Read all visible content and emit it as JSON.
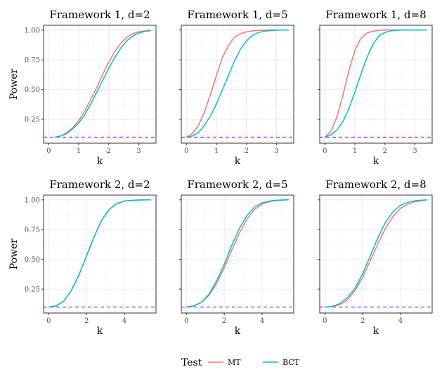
{
  "chart_data": {
    "type": "line",
    "ylabel": "Power",
    "xlabel": "k",
    "legend": {
      "title": "Test",
      "position": "bottom",
      "entries": [
        {
          "name": "MT",
          "color": "#F8766D"
        },
        {
          "name": "BCT",
          "color": "#00BFC4"
        }
      ]
    },
    "reference_line": {
      "y": 0.1,
      "color": "#A020F0",
      "style": "dashed"
    },
    "y_ticks": [
      0.25,
      0.5,
      0.75,
      1.0
    ],
    "y_tick_labels": [
      "0.25",
      "0.50",
      "0.75",
      "1.00"
    ],
    "ylim": [
      0.05,
      1.04
    ],
    "panels": [
      {
        "title": "Framework 1, d=2",
        "xlim": [
          -0.17,
          3.57
        ],
        "x_ticks": [
          0,
          1,
          2,
          3
        ],
        "series": [
          {
            "name": "MT",
            "x": [
              0.2,
              0.4,
              0.6,
              0.8,
              1.0,
              1.2,
              1.4,
              1.6,
              1.8,
              2.0,
              2.2,
              2.4,
              2.6,
              2.8,
              3.0,
              3.2,
              3.4
            ],
            "y": [
              0.1,
              0.11,
              0.14,
              0.18,
              0.24,
              0.32,
              0.42,
              0.52,
              0.63,
              0.73,
              0.82,
              0.89,
              0.94,
              0.97,
              0.985,
              0.993,
              0.997
            ]
          },
          {
            "name": "BCT",
            "x": [
              0.2,
              0.4,
              0.6,
              0.8,
              1.0,
              1.2,
              1.4,
              1.6,
              1.8,
              2.0,
              2.2,
              2.4,
              2.6,
              2.8,
              3.0,
              3.2,
              3.4
            ],
            "y": [
              0.1,
              0.11,
              0.13,
              0.17,
              0.22,
              0.29,
              0.38,
              0.48,
              0.58,
              0.68,
              0.77,
              0.85,
              0.91,
              0.95,
              0.975,
              0.988,
              0.995
            ]
          }
        ]
      },
      {
        "title": "Framework 1, d=5",
        "xlim": [
          -0.17,
          3.57
        ],
        "x_ticks": [
          0,
          1,
          2,
          3
        ],
        "series": [
          {
            "name": "MT",
            "x": [
              0.0,
              0.2,
              0.4,
              0.6,
              0.8,
              1.0,
              1.2,
              1.4,
              1.6,
              1.8,
              2.0,
              2.2,
              2.4,
              2.6,
              2.8,
              3.0,
              3.2,
              3.4
            ],
            "y": [
              0.1,
              0.13,
              0.2,
              0.31,
              0.46,
              0.62,
              0.77,
              0.87,
              0.94,
              0.97,
              0.985,
              0.993,
              0.997,
              0.999,
              1.0,
              1.0,
              1.0,
              1.0
            ]
          },
          {
            "name": "BCT",
            "x": [
              0.0,
              0.2,
              0.4,
              0.6,
              0.8,
              1.0,
              1.2,
              1.4,
              1.6,
              1.8,
              2.0,
              2.2,
              2.4,
              2.6,
              2.8,
              3.0,
              3.2,
              3.4
            ],
            "y": [
              0.1,
              0.11,
              0.14,
              0.2,
              0.28,
              0.38,
              0.5,
              0.62,
              0.74,
              0.84,
              0.91,
              0.955,
              0.98,
              0.99,
              0.996,
              0.999,
              1.0,
              1.0
            ]
          }
        ]
      },
      {
        "title": "Framework 1, d=8",
        "xlim": [
          -0.17,
          3.57
        ],
        "x_ticks": [
          0,
          1,
          2,
          3
        ],
        "series": [
          {
            "name": "MT",
            "x": [
              0.0,
              0.2,
              0.4,
              0.6,
              0.8,
              1.0,
              1.2,
              1.4,
              1.6,
              1.8,
              2.0,
              2.2,
              2.4,
              2.6,
              2.8,
              3.0,
              3.2,
              3.4
            ],
            "y": [
              0.1,
              0.15,
              0.27,
              0.45,
              0.66,
              0.83,
              0.93,
              0.975,
              0.99,
              0.997,
              1.0,
              1.0,
              1.0,
              1.0,
              1.0,
              1.0,
              1.0,
              1.0
            ]
          },
          {
            "name": "BCT",
            "x": [
              0.0,
              0.2,
              0.4,
              0.6,
              0.8,
              1.0,
              1.2,
              1.4,
              1.6,
              1.8,
              2.0,
              2.2,
              2.4,
              2.6,
              2.8,
              3.0,
              3.2,
              3.4
            ],
            "y": [
              0.1,
              0.12,
              0.16,
              0.23,
              0.34,
              0.48,
              0.63,
              0.77,
              0.88,
              0.95,
              0.98,
              0.993,
              0.998,
              1.0,
              1.0,
              1.0,
              1.0,
              1.0
            ]
          }
        ]
      },
      {
        "title": "Framework 2, d=2",
        "xlim": [
          -0.27,
          5.67
        ],
        "x_ticks": [
          0,
          2,
          4
        ],
        "series": [
          {
            "name": "MT",
            "x": [
              0.0,
              0.4,
              0.8,
              1.2,
              1.6,
              2.0,
              2.4,
              2.8,
              3.2,
              3.6,
              4.0,
              4.4,
              4.8,
              5.2,
              5.4
            ],
            "y": [
              0.1,
              0.11,
              0.15,
              0.24,
              0.37,
              0.53,
              0.69,
              0.83,
              0.92,
              0.97,
              0.99,
              0.996,
              0.999,
              1.0,
              1.0
            ]
          },
          {
            "name": "BCT",
            "x": [
              0.0,
              0.4,
              0.8,
              1.2,
              1.6,
              2.0,
              2.4,
              2.8,
              3.2,
              3.6,
              4.0,
              4.4,
              4.8,
              5.2,
              5.4
            ],
            "y": [
              0.1,
              0.11,
              0.15,
              0.24,
              0.37,
              0.53,
              0.69,
              0.83,
              0.92,
              0.97,
              0.99,
              0.996,
              0.999,
              1.0,
              1.0
            ]
          }
        ]
      },
      {
        "title": "Framework 2, d=5",
        "xlim": [
          -0.27,
          5.67
        ],
        "x_ticks": [
          0,
          2,
          4
        ],
        "series": [
          {
            "name": "MT",
            "x": [
              0.0,
              0.4,
              0.8,
              1.2,
              1.6,
              2.0,
              2.4,
              2.8,
              3.2,
              3.6,
              4.0,
              4.4,
              4.8,
              5.2,
              5.4
            ],
            "y": [
              0.1,
              0.11,
              0.14,
              0.2,
              0.3,
              0.43,
              0.58,
              0.72,
              0.84,
              0.92,
              0.965,
              0.985,
              0.995,
              0.999,
              1.0
            ]
          },
          {
            "name": "BCT",
            "x": [
              0.0,
              0.4,
              0.8,
              1.2,
              1.6,
              2.0,
              2.4,
              2.8,
              3.2,
              3.6,
              4.0,
              4.4,
              4.8,
              5.2,
              5.4
            ],
            "y": [
              0.1,
              0.11,
              0.14,
              0.21,
              0.32,
              0.46,
              0.62,
              0.76,
              0.87,
              0.94,
              0.975,
              0.99,
              0.997,
              1.0,
              1.0
            ]
          }
        ]
      },
      {
        "title": "Framework 2, d=8",
        "xlim": [
          -0.27,
          5.67
        ],
        "x_ticks": [
          0,
          2,
          4
        ],
        "series": [
          {
            "name": "MT",
            "x": [
              0.0,
              0.4,
              0.8,
              1.2,
              1.6,
              2.0,
              2.4,
              2.8,
              3.2,
              3.6,
              4.0,
              4.4,
              4.8,
              5.2,
              5.4
            ],
            "y": [
              0.1,
              0.105,
              0.12,
              0.16,
              0.24,
              0.35,
              0.49,
              0.63,
              0.76,
              0.86,
              0.93,
              0.965,
              0.985,
              0.995,
              1.0
            ]
          },
          {
            "name": "BCT",
            "x": [
              0.0,
              0.4,
              0.8,
              1.2,
              1.6,
              2.0,
              2.4,
              2.8,
              3.2,
              3.6,
              4.0,
              4.4,
              4.8,
              5.2,
              5.4
            ],
            "y": [
              0.1,
              0.105,
              0.13,
              0.18,
              0.26,
              0.38,
              0.53,
              0.68,
              0.81,
              0.9,
              0.955,
              0.98,
              0.993,
              0.998,
              1.0
            ]
          }
        ]
      }
    ]
  }
}
